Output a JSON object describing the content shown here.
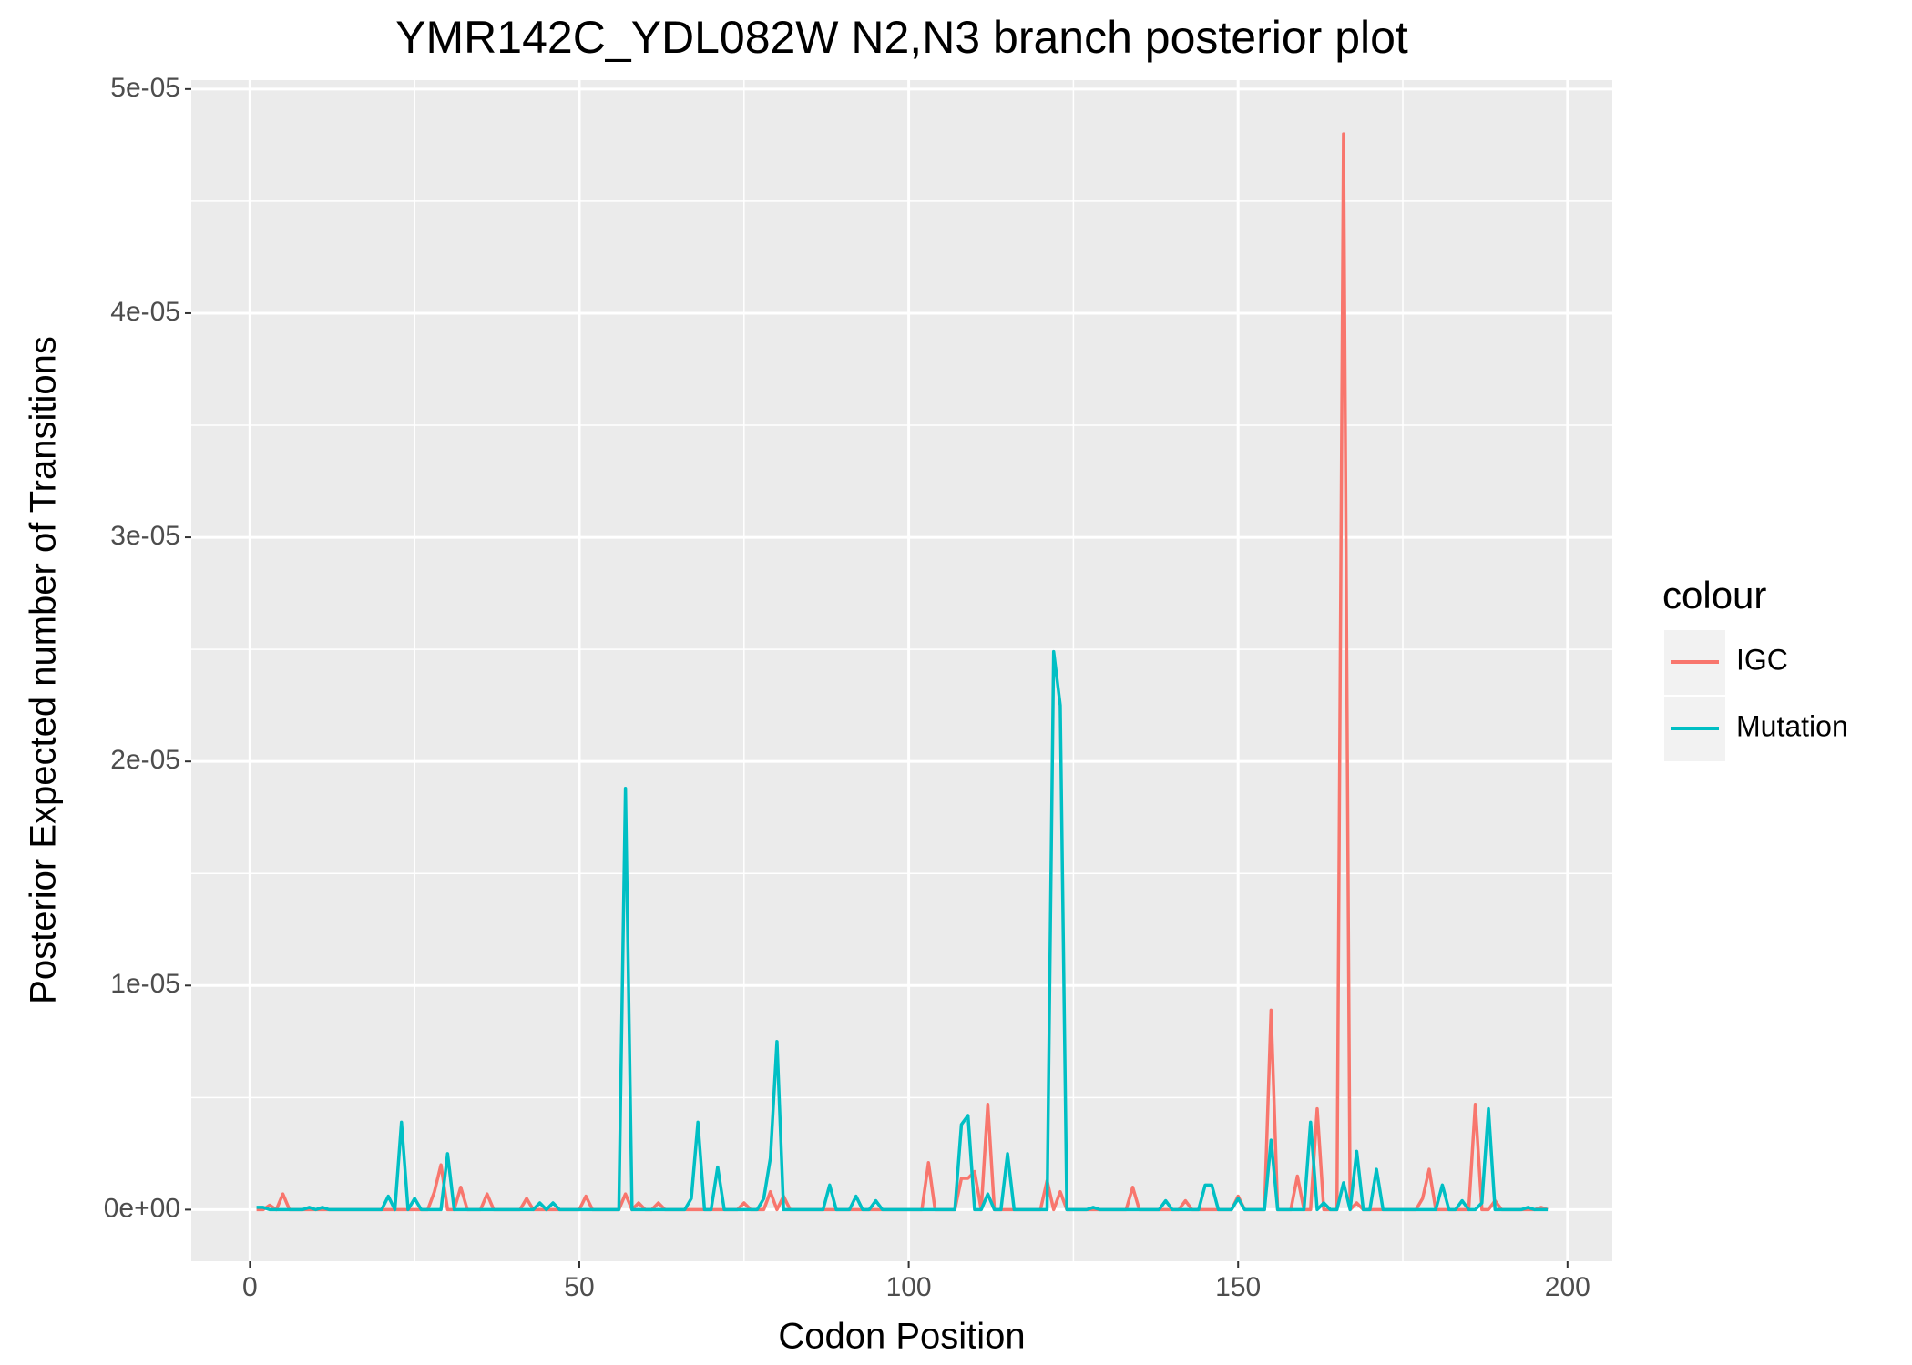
{
  "chart_data": {
    "type": "line",
    "title": "YMR142C_YDL082W N2,N3 branch posterior plot",
    "x_label": "Codon Position",
    "y_label": "Posterior Expected number of Transitions",
    "legend_title": "colour",
    "legend": "right",
    "grid": true,
    "xlim": [
      -8.9,
      206.8
    ],
    "xticks": [
      0,
      50,
      100,
      150,
      200
    ],
    "ylim": [
      -2.3e-06,
      5.04e-05
    ],
    "yticks": [
      {
        "value": 0,
        "label": "0e+00"
      },
      {
        "value": 1e-05,
        "label": "1e-05"
      },
      {
        "value": 2e-05,
        "label": "2e-05"
      },
      {
        "value": 3e-05,
        "label": "3e-05"
      },
      {
        "value": 4e-05,
        "label": "4e-05"
      },
      {
        "value": 5e-05,
        "label": "5e-05"
      }
    ],
    "x": [
      1,
      2,
      3,
      4,
      5,
      6,
      7,
      8,
      9,
      10,
      11,
      12,
      13,
      14,
      15,
      16,
      17,
      18,
      19,
      20,
      21,
      22,
      23,
      24,
      25,
      26,
      27,
      28,
      29,
      30,
      31,
      32,
      33,
      34,
      35,
      36,
      37,
      38,
      39,
      40,
      41,
      42,
      43,
      44,
      45,
      46,
      47,
      48,
      49,
      50,
      51,
      52,
      53,
      54,
      55,
      56,
      57,
      58,
      59,
      60,
      61,
      62,
      63,
      64,
      65,
      66,
      67,
      68,
      69,
      70,
      71,
      72,
      73,
      74,
      75,
      76,
      77,
      78,
      79,
      80,
      81,
      82,
      83,
      84,
      85,
      86,
      87,
      88,
      89,
      90,
      91,
      92,
      93,
      94,
      95,
      96,
      97,
      98,
      99,
      100,
      101,
      102,
      103,
      104,
      105,
      106,
      107,
      108,
      109,
      110,
      111,
      112,
      113,
      114,
      115,
      116,
      117,
      118,
      119,
      120,
      121,
      122,
      123,
      124,
      125,
      126,
      127,
      128,
      129,
      130,
      131,
      132,
      133,
      134,
      135,
      136,
      137,
      138,
      139,
      140,
      141,
      142,
      143,
      144,
      145,
      146,
      147,
      148,
      149,
      150,
      151,
      152,
      153,
      154,
      155,
      156,
      157,
      158,
      159,
      160,
      161,
      162,
      163,
      164,
      165,
      166,
      167,
      168,
      169,
      170,
      171,
      172,
      173,
      174,
      175,
      176,
      177,
      178,
      179,
      180,
      181,
      182,
      183,
      184,
      185,
      186,
      187,
      188,
      189,
      190,
      191,
      192,
      193,
      194,
      195,
      196,
      197
    ],
    "series": [
      {
        "name": "IGC",
        "color": "#F8766D",
        "values": [
          0,
          0,
          2e-07,
          0,
          7e-07,
          0,
          0,
          0,
          0,
          0,
          0,
          0,
          0,
          0,
          0,
          0,
          0,
          0,
          0,
          0,
          0,
          0,
          0,
          0,
          0,
          0,
          0,
          8e-07,
          2e-06,
          0,
          0,
          1e-06,
          0,
          0,
          0,
          7e-07,
          0,
          0,
          0,
          0,
          0,
          5e-07,
          0,
          0,
          0,
          0,
          0,
          0,
          0,
          0,
          6e-07,
          0,
          0,
          0,
          0,
          0,
          7e-07,
          0,
          3e-07,
          0,
          0,
          3e-07,
          0,
          0,
          0,
          0,
          0,
          0,
          0,
          0,
          0,
          0,
          0,
          0,
          3e-07,
          0,
          0,
          0,
          8e-07,
          0,
          6e-07,
          0,
          0,
          0,
          0,
          0,
          0,
          0,
          0,
          0,
          0,
          0,
          0,
          0,
          0,
          0,
          0,
          0,
          0,
          0,
          0,
          0,
          2.1e-06,
          0,
          0,
          0,
          0,
          1.4e-06,
          1.4e-06,
          1.7e-06,
          0,
          4.7e-06,
          0,
          0,
          0,
          0,
          0,
          0,
          0,
          0,
          1.3e-06,
          0,
          8e-07,
          0,
          0,
          0,
          0,
          0,
          0,
          0,
          0,
          0,
          0,
          1e-06,
          0,
          0,
          0,
          0,
          0,
          0,
          0,
          4e-07,
          0,
          0,
          0,
          0,
          0,
          0,
          0,
          6e-07,
          0,
          0,
          0,
          0,
          8.9e-06,
          0,
          0,
          0,
          1.5e-06,
          0,
          0,
          4.5e-06,
          0,
          0,
          0,
          4.8e-05,
          0,
          3e-07,
          0,
          0,
          0,
          0,
          0,
          0,
          0,
          0,
          0,
          5e-07,
          1.8e-06,
          0,
          0,
          0,
          0,
          0,
          0,
          4.7e-06,
          0,
          0,
          4e-07,
          0,
          0,
          0,
          0,
          0,
          0,
          1e-07,
          0
        ]
      },
      {
        "name": "Mutation",
        "color": "#00BFC4",
        "values": [
          1e-07,
          1e-07,
          0,
          0,
          0,
          0,
          0,
          0,
          1e-07,
          0,
          1e-07,
          0,
          0,
          0,
          0,
          0,
          0,
          0,
          0,
          0,
          6e-07,
          0,
          3.9e-06,
          0,
          5e-07,
          0,
          0,
          0,
          0,
          2.5e-06,
          0,
          0,
          0,
          0,
          0,
          0,
          0,
          0,
          0,
          0,
          0,
          0,
          0,
          3e-07,
          0,
          3e-07,
          0,
          0,
          0,
          0,
          0,
          0,
          0,
          0,
          0,
          0,
          1.88e-05,
          0,
          0,
          0,
          0,
          0,
          0,
          0,
          0,
          0,
          5e-07,
          3.9e-06,
          0,
          0,
          1.9e-06,
          0,
          0,
          0,
          0,
          0,
          0,
          5e-07,
          2.3e-06,
          7.5e-06,
          0,
          0,
          0,
          0,
          0,
          0,
          0,
          1.1e-06,
          0,
          0,
          0,
          6e-07,
          0,
          0,
          4e-07,
          0,
          0,
          0,
          0,
          0,
          0,
          0,
          0,
          0,
          0,
          0,
          0,
          3.8e-06,
          4.2e-06,
          0,
          0,
          7e-07,
          0,
          0,
          2.5e-06,
          0,
          0,
          0,
          0,
          0,
          0,
          2.49e-05,
          2.25e-05,
          0,
          0,
          0,
          0,
          1e-07,
          0,
          0,
          0,
          0,
          0,
          0,
          0,
          0,
          0,
          0,
          4e-07,
          0,
          0,
          0,
          0,
          0,
          1.1e-06,
          1.1e-06,
          0,
          0,
          0,
          5e-07,
          0,
          0,
          0,
          0,
          3.1e-06,
          0,
          0,
          0,
          0,
          0,
          3.9e-06,
          0,
          3e-07,
          0,
          0,
          1.2e-06,
          0,
          2.6e-06,
          0,
          0,
          1.8e-06,
          0,
          0,
          0,
          0,
          0,
          0,
          0,
          0,
          0,
          1.1e-06,
          0,
          0,
          4e-07,
          0,
          0,
          3e-07,
          4.5e-06,
          0,
          0,
          0,
          0,
          0,
          1e-07,
          0,
          0,
          0
        ]
      }
    ]
  }
}
